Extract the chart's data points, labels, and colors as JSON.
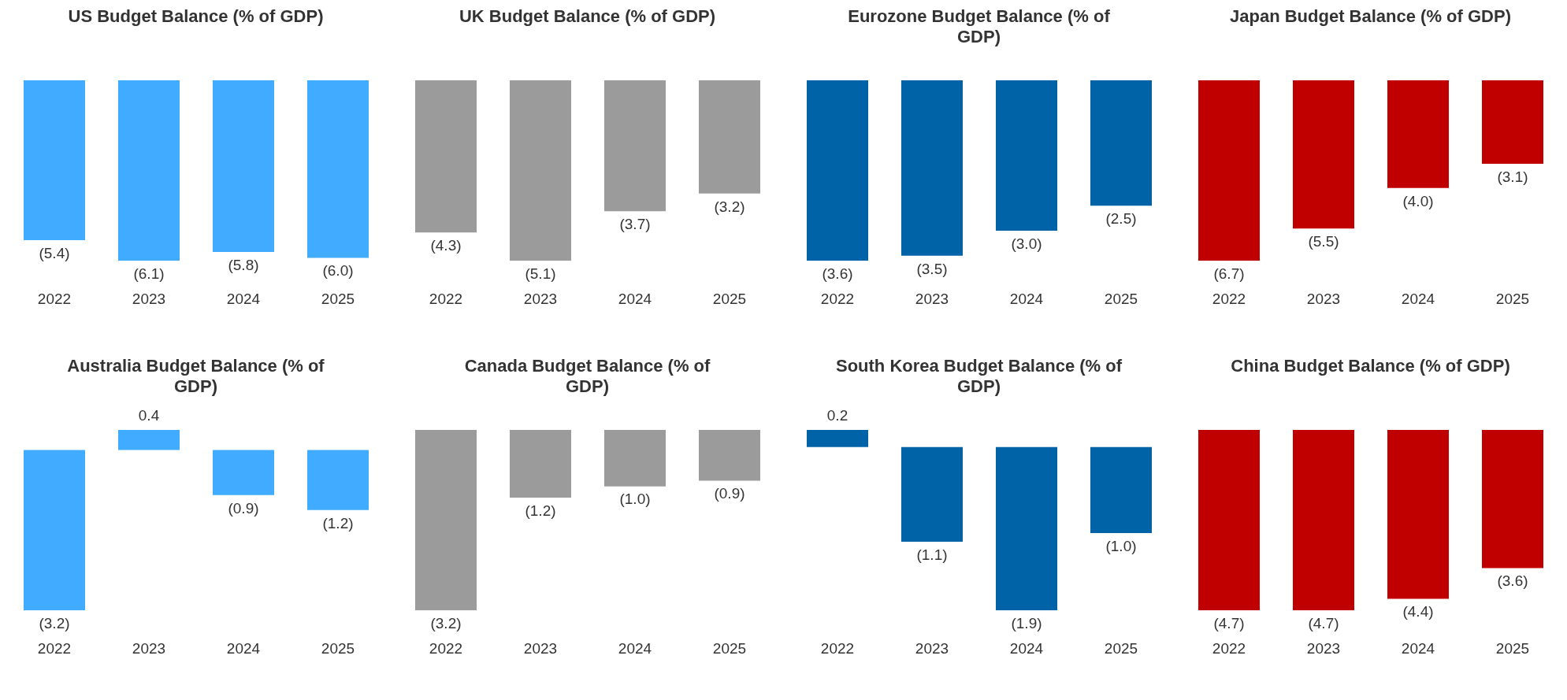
{
  "chart_data": [
    {
      "type": "bar",
      "title": "US Budget Balance (% of GDP)",
      "categories": [
        "2022",
        "2023",
        "2024",
        "2025"
      ],
      "series": [
        {
          "color": "#41acff",
          "values": [
            -5.4,
            -6.1,
            -5.8,
            -6.0
          ],
          "value_labels": [
            "(5.4)",
            "(6.1)",
            "(5.8)",
            "(6.0)"
          ]
        }
      ],
      "tick_labels": "x",
      "grid": false,
      "legend": false
    },
    {
      "type": "bar",
      "title": "UK Budget Balance (% of GDP)",
      "categories": [
        "2022",
        "2023",
        "2024",
        "2025"
      ],
      "series": [
        {
          "color": "#9b9b9b",
          "values": [
            -4.3,
            -5.1,
            -3.7,
            -3.2
          ],
          "value_labels": [
            "(4.3)",
            "(5.1)",
            "(3.7)",
            "(3.2)"
          ]
        }
      ],
      "tick_labels": "x",
      "grid": false,
      "legend": false
    },
    {
      "type": "bar",
      "title": "Eurozone Budget Balance (% of GDP)",
      "categories": [
        "2022",
        "2023",
        "2024",
        "2025"
      ],
      "series": [
        {
          "color": "#0063a8",
          "values": [
            -3.6,
            -3.5,
            -3.0,
            -2.5
          ],
          "value_labels": [
            "(3.6)",
            "(3.5)",
            "(3.0)",
            "(2.5)"
          ]
        }
      ],
      "tick_labels": "x",
      "grid": false,
      "legend": false
    },
    {
      "type": "bar",
      "title": "Japan Budget Balance (% of GDP)",
      "categories": [
        "2022",
        "2023",
        "2024",
        "2025"
      ],
      "series": [
        {
          "color": "#c00000",
          "values": [
            -6.7,
            -5.5,
            -4.0,
            -3.1
          ],
          "value_labels": [
            "(6.7)",
            "(5.5)",
            "(4.0)",
            "(3.1)"
          ]
        }
      ],
      "tick_labels": "x",
      "grid": false,
      "legend": false
    },
    {
      "type": "bar",
      "title": "Australia Budget Balance (% of GDP)",
      "categories": [
        "2022",
        "2023",
        "2024",
        "2025"
      ],
      "series": [
        {
          "color": "#41acff",
          "values": [
            -3.2,
            0.4,
            -0.9,
            -1.2
          ],
          "value_labels": [
            "(3.2)",
            "0.4",
            "(0.9)",
            "(1.2)"
          ]
        }
      ],
      "tick_labels": "x",
      "grid": false,
      "legend": false
    },
    {
      "type": "bar",
      "title": "Canada Budget Balance (% of GDP)",
      "categories": [
        "2022",
        "2023",
        "2024",
        "2025"
      ],
      "series": [
        {
          "color": "#9b9b9b",
          "values": [
            -3.2,
            -1.2,
            -1.0,
            -0.9
          ],
          "value_labels": [
            "(3.2)",
            "(1.2)",
            "(1.0)",
            "(0.9)"
          ]
        }
      ],
      "tick_labels": "x",
      "grid": false,
      "legend": false
    },
    {
      "type": "bar",
      "title": "South Korea Budget Balance (% of GDP)",
      "categories": [
        "2022",
        "2023",
        "2024",
        "2025"
      ],
      "series": [
        {
          "color": "#0063a8",
          "values": [
            0.2,
            -1.1,
            -1.9,
            -1.0
          ],
          "value_labels": [
            "0.2",
            "(1.1)",
            "(1.9)",
            "(1.0)"
          ]
        }
      ],
      "tick_labels": "x",
      "grid": false,
      "legend": false
    },
    {
      "type": "bar",
      "title": "China Budget Balance (% of GDP)",
      "categories": [
        "2022",
        "2023",
        "2024",
        "2025"
      ],
      "series": [
        {
          "color": "#c00000",
          "values": [
            -4.7,
            -4.7,
            -4.4,
            -3.6
          ],
          "value_labels": [
            "(4.7)",
            "(4.7)",
            "(4.4)",
            "(3.6)"
          ]
        }
      ],
      "tick_labels": "x",
      "grid": false,
      "legend": false
    }
  ]
}
